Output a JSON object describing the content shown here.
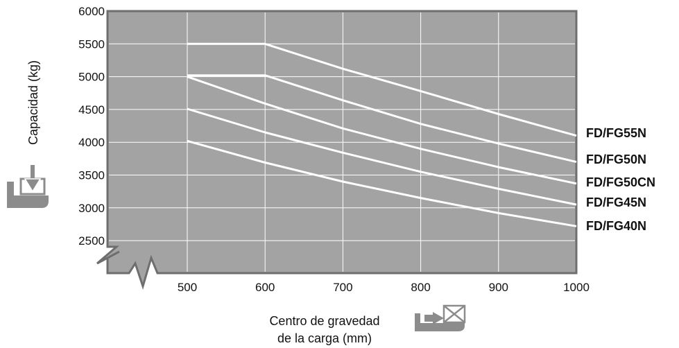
{
  "chart_data": {
    "type": "line",
    "title": "",
    "ylabel": "Capacidad (kg)",
    "xlabel_lines": [
      "Centro de gravedad",
      "de la carga (mm)"
    ],
    "xlim": [
      500,
      1000
    ],
    "ylim": [
      2500,
      6000
    ],
    "x_ticks": [
      "500",
      "600",
      "700",
      "800",
      "900",
      "1000"
    ],
    "y_ticks": [
      "2500",
      "3000",
      "3500",
      "4000",
      "4500",
      "5000",
      "5500",
      "6000"
    ],
    "grid": true,
    "legend": "right-end labels",
    "colors": {
      "plot_bg": "#a3a3a3",
      "series": "#ffffff",
      "frame": "#6e6e6e",
      "icon": "#8c8c8c"
    },
    "series": [
      {
        "name": "FD/FG55N",
        "x": [
          500,
          600,
          700,
          800,
          900,
          1000
        ],
        "values": [
          5500,
          5500,
          5120,
          4780,
          4430,
          4100
        ]
      },
      {
        "name": "FD/FG50N",
        "x": [
          500,
          600,
          700,
          800,
          900,
          1000
        ],
        "values": [
          5020,
          5020,
          4640,
          4280,
          3980,
          3700
        ]
      },
      {
        "name": "FD/FG50CN",
        "x": [
          500,
          600,
          700,
          800,
          900,
          1000
        ],
        "values": [
          5000,
          4590,
          4210,
          3900,
          3620,
          3370
        ]
      },
      {
        "name": "FD/FG45N",
        "x": [
          500,
          600,
          700,
          800,
          900,
          1000
        ],
        "values": [
          4510,
          4150,
          3840,
          3550,
          3290,
          3050
        ]
      },
      {
        "name": "FD/FG40N",
        "x": [
          500,
          600,
          700,
          800,
          900,
          1000
        ],
        "values": [
          4020,
          3690,
          3400,
          3150,
          2920,
          2720
        ]
      }
    ]
  }
}
